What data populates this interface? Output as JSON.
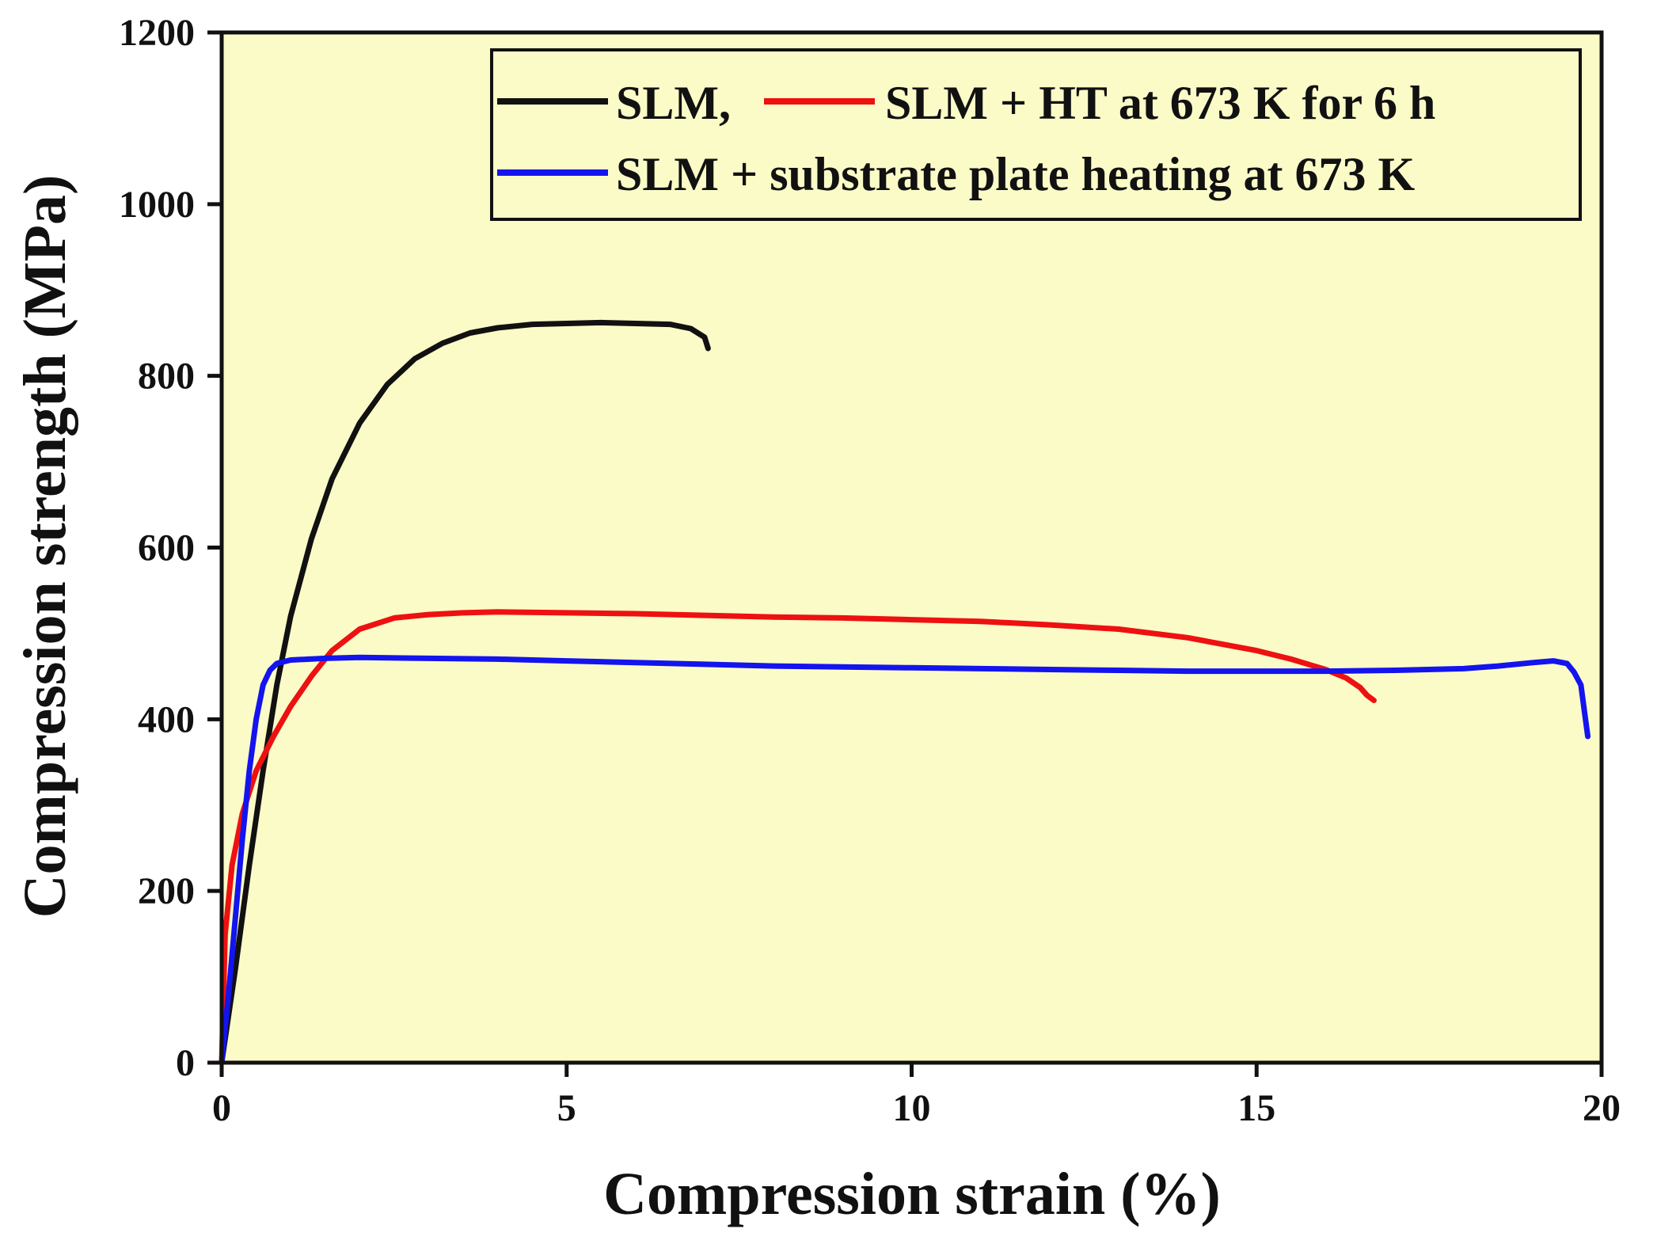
{
  "chart_data": {
    "type": "line",
    "title": "",
    "xlabel": "Compression strain (%)",
    "ylabel": "Compression strength (MPa)",
    "xlim": [
      0,
      20
    ],
    "ylim": [
      0,
      1200
    ],
    "xticks": [
      0,
      5,
      10,
      15,
      20
    ],
    "yticks": [
      0,
      200,
      400,
      600,
      800,
      1000,
      1200
    ],
    "xtick_labels": [
      "0",
      "5",
      "10",
      "15",
      "20"
    ],
    "ytick_labels": [
      "0",
      "200",
      "400",
      "600",
      "800",
      "1000",
      "1200"
    ],
    "grid": false,
    "background": "#FBFBC8",
    "legend_position": "top-right",
    "legend": {
      "row1_a": "SLM,",
      "row1_b": "SLM + HT at 673 K for 6 h",
      "row2": "SLM + substrate plate heating at 673 K"
    },
    "series": [
      {
        "name": "SLM",
        "color": "#111111",
        "x": [
          0,
          0.2,
          0.4,
          0.6,
          0.8,
          1.0,
          1.3,
          1.6,
          2.0,
          2.4,
          2.8,
          3.2,
          3.6,
          4.0,
          4.5,
          5.0,
          5.5,
          6.0,
          6.5,
          6.8,
          7.0,
          7.05
        ],
        "y": [
          0,
          110,
          230,
          340,
          440,
          520,
          610,
          680,
          745,
          790,
          820,
          838,
          850,
          856,
          860,
          861,
          862,
          861,
          860,
          855,
          845,
          832
        ]
      },
      {
        "name": "SLM + HT at 673 K for 6 h",
        "color": "#EE1111",
        "x": [
          0,
          0.05,
          0.15,
          0.3,
          0.5,
          0.75,
          1.0,
          1.3,
          1.6,
          2.0,
          2.5,
          3.0,
          3.5,
          4.0,
          5.0,
          6.0,
          7.0,
          8.0,
          9.0,
          10.0,
          11.0,
          12.0,
          13.0,
          14.0,
          15.0,
          15.5,
          16.0,
          16.3,
          16.5,
          16.6,
          16.7
        ],
        "y": [
          0,
          150,
          230,
          290,
          340,
          380,
          415,
          450,
          480,
          505,
          518,
          522,
          524,
          525,
          524,
          523,
          521,
          519,
          518,
          516,
          514,
          510,
          505,
          495,
          480,
          470,
          458,
          448,
          437,
          428,
          422
        ]
      },
      {
        "name": "SLM + substrate plate heating at 673 K",
        "color": "#1414EE",
        "x": [
          0,
          0.1,
          0.2,
          0.3,
          0.4,
          0.5,
          0.6,
          0.7,
          0.8,
          1.0,
          1.5,
          2.0,
          3.0,
          4.0,
          5.0,
          6.0,
          7.0,
          8.0,
          9.0,
          10.0,
          11.0,
          12.0,
          13.0,
          14.0,
          15.0,
          16.0,
          17.0,
          18.0,
          18.5,
          19.0,
          19.3,
          19.5,
          19.6,
          19.7,
          19.75,
          19.8
        ],
        "y": [
          0,
          80,
          170,
          260,
          340,
          400,
          440,
          457,
          465,
          469,
          471,
          472,
          471,
          470,
          468,
          466,
          464,
          462,
          461,
          460,
          459,
          458,
          457,
          456,
          456,
          456,
          457,
          459,
          462,
          466,
          468,
          465,
          455,
          440,
          410,
          380
        ]
      }
    ]
  }
}
